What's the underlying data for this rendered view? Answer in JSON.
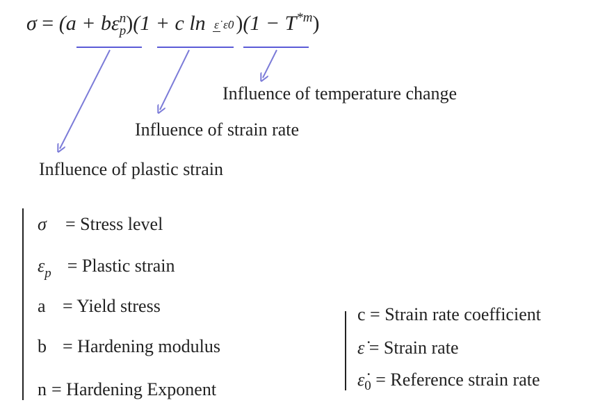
{
  "equation": {
    "sigma": "σ",
    "equals": "=",
    "term1_open": "(a + b",
    "epsilon": "ε",
    "term1_sup": "n",
    "term1_sub": "p",
    "term1_close": ")",
    "term2_open": "(1 + c ln",
    "frac_num": "ε̇",
    "frac_den": "ε̇0",
    "term2_close": ")",
    "term3_open": "(1 − T",
    "term3_sup": "*m",
    "term3_close": ")"
  },
  "annotations": {
    "temperature": "Influence of temperature change",
    "strain_rate": "Influence of strain rate",
    "plastic": "Influence of plastic strain"
  },
  "legend_left": [
    {
      "symbol": "σ",
      "sub": "",
      "eq": "=",
      "text": "Stress level"
    },
    {
      "symbol": "ε",
      "sub": "p",
      "eq": "=",
      "text": "Plastic strain"
    },
    {
      "symbol": "a",
      "sub": "",
      "eq": "=",
      "text": "Yield stress"
    },
    {
      "symbol": "b",
      "sub": "",
      "eq": "=",
      "text": "Hardening modulus"
    },
    {
      "symbol": "n",
      "sub": "",
      "eq": "=",
      "text": "Hardening Exponent"
    }
  ],
  "legend_right": [
    {
      "symbol": "c",
      "sub": "",
      "eq": "=",
      "text": "Strain rate coefficient"
    },
    {
      "symbol": "ε̇",
      "sub": "",
      "eq": "=",
      "text": "Strain rate"
    },
    {
      "symbol": "ε̇",
      "sub": "0",
      "eq": "=",
      "text": "Reference strain rate"
    }
  ],
  "colors": {
    "underline": "#5b5bd6",
    "arrow": "#7b7bd8",
    "text": "#222222"
  }
}
